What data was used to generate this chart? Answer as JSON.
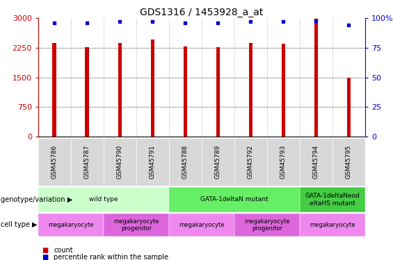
{
  "title": "GDS1316 / 1453928_a_at",
  "samples": [
    "GSM45786",
    "GSM45787",
    "GSM45790",
    "GSM45791",
    "GSM45788",
    "GSM45789",
    "GSM45792",
    "GSM45793",
    "GSM45794",
    "GSM45795"
  ],
  "counts": [
    2380,
    2270,
    2380,
    2460,
    2290,
    2270,
    2380,
    2360,
    2980,
    1500
  ],
  "percentiles": [
    96,
    96,
    97,
    97,
    96,
    96,
    97,
    97,
    98,
    94
  ],
  "ylim_left": [
    0,
    3000
  ],
  "ylim_right": [
    0,
    100
  ],
  "yticks_left": [
    0,
    750,
    1500,
    2250,
    3000
  ],
  "yticks_right": [
    0,
    25,
    50,
    75,
    100
  ],
  "bar_color": "#cc0000",
  "dot_color": "#0000cc",
  "genotype_groups": [
    {
      "label": "wild type",
      "start": 0,
      "end": 4,
      "color": "#ccffcc"
    },
    {
      "label": "GATA-1deltaN mutant",
      "start": 4,
      "end": 8,
      "color": "#66ee66"
    },
    {
      "label": "GATA-1deltaNeod\neltaHS mutant",
      "start": 8,
      "end": 10,
      "color": "#44cc44"
    }
  ],
  "cell_type_groups": [
    {
      "label": "megakaryocyte",
      "start": 0,
      "end": 2,
      "color": "#ee88ee"
    },
    {
      "label": "megakaryocyte\nprogenitor",
      "start": 2,
      "end": 4,
      "color": "#dd66dd"
    },
    {
      "label": "megakaryocyte",
      "start": 4,
      "end": 6,
      "color": "#ee88ee"
    },
    {
      "label": "megakaryocyte\nprogenitor",
      "start": 6,
      "end": 8,
      "color": "#dd66dd"
    },
    {
      "label": "megakaryocyte",
      "start": 8,
      "end": 10,
      "color": "#ee88ee"
    }
  ],
  "legend_count_color": "#cc0000",
  "legend_dot_color": "#0000cc",
  "left_label_color": "#cc0000",
  "right_label_color": "#0000cc"
}
